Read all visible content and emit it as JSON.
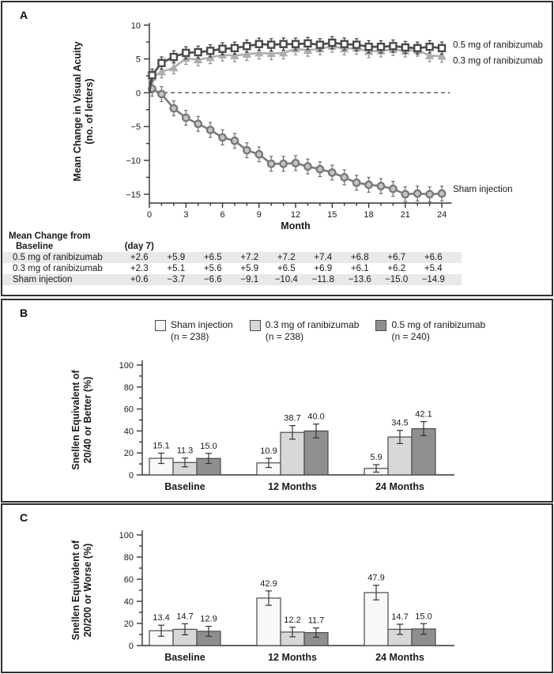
{
  "panel_a": {
    "letter": "A",
    "table": {
      "row_header_line1": "Mean Change from",
      "row_header_line2": "Baseline",
      "first_col_header": "(day 7)",
      "rows": [
        {
          "label": "0.5 mg of ranibizumab",
          "values": [
            "+2.6",
            "+5.9",
            "+6.5",
            "+7.2",
            "+7.2",
            "+7.4",
            "+6.8",
            "+6.7",
            "+6.6"
          ]
        },
        {
          "label": "0.3 mg of ranibizumab",
          "values": [
            "+2.3",
            "+5.1",
            "+5.6",
            "+5.9",
            "+6.5",
            "+6.9",
            "+6.1",
            "+6.2",
            "+5.4"
          ]
        },
        {
          "label": "Sham injection",
          "values": [
            "+0.6",
            "−3.7",
            "−6.6",
            "−9.1",
            "−10.4",
            "−11.8",
            "−13.6",
            "−15.0",
            "−14.9"
          ]
        }
      ]
    }
  },
  "panel_b": {
    "letter": "B"
  },
  "panel_c": {
    "letter": "C"
  },
  "colors": {
    "ranibizumab_05": "#4a4a4a",
    "ranibizumab_03": "#aeaeae",
    "sham_line": "#7a7a7a",
    "sham_bar": "#f8f8f8",
    "bar_03": "#d8d8d8",
    "bar_05": "#8f8f8f",
    "axis": "#333333"
  },
  "chart_data": [
    {
      "panel": "A",
      "type": "line",
      "title": "",
      "xlabel": "Month",
      "ylabel_lines": [
        "Mean Change in Visual Acuity",
        "(no. of letters)"
      ],
      "xlim": [
        0,
        24.8
      ],
      "ylim": [
        -16.5,
        10
      ],
      "yticks": [
        10,
        5,
        0,
        -5,
        -10,
        -15
      ],
      "yminor": [
        7.5,
        2.5,
        -2.5,
        -7.5,
        -12.5
      ],
      "xticks": [
        0,
        3,
        6,
        9,
        12,
        15,
        18,
        21,
        24
      ],
      "xminor_months": [
        1,
        2,
        4,
        5,
        7,
        8,
        10,
        11,
        13,
        14,
        16,
        17,
        19,
        20,
        22,
        23
      ],
      "zero_line_dashed": true,
      "x_note": "x=0.23 is the day-7 assessment; baseline point (0,0) has no marker",
      "x": [
        0,
        0.23,
        1,
        2,
        3,
        4,
        5,
        6,
        7,
        8,
        9,
        10,
        11,
        12,
        13,
        14,
        15,
        16,
        17,
        18,
        19,
        20,
        21,
        22,
        23,
        24
      ],
      "series": [
        {
          "name": "Sham injection",
          "marker": "circle",
          "color": "#7a7a7a",
          "marker_fill": "#c4c4c4",
          "err_color": "#6f6f6f",
          "error": 1.1,
          "label_y": -14.2,
          "values": [
            0,
            0.6,
            -0.2,
            -2.3,
            -3.7,
            -4.6,
            -5.5,
            -6.6,
            -7.1,
            -8.5,
            -9.1,
            -10.5,
            -10.5,
            -10.4,
            -10.9,
            -11.3,
            -11.8,
            -12.5,
            -13.3,
            -13.6,
            -13.8,
            -14.2,
            -15.0,
            -14.9,
            -15.0,
            -14.9
          ]
        },
        {
          "name": "0.3 mg of ranibizumab",
          "marker": "triangle",
          "color": "#aeaeae",
          "marker_fill": "#aeaeae",
          "err_color": "#8f8f8f",
          "error": 0.9,
          "label_y": 4.8,
          "values": [
            0,
            2.3,
            3.1,
            3.7,
            5.1,
            4.9,
            5.2,
            5.6,
            5.5,
            5.7,
            5.9,
            5.8,
            5.9,
            6.5,
            6.3,
            6.5,
            6.9,
            6.5,
            6.6,
            6.1,
            6.2,
            6.4,
            6.2,
            6.3,
            5.5,
            5.4
          ]
        },
        {
          "name": "0.5 mg of ranibizumab",
          "marker": "square",
          "color": "#4a4a4a",
          "marker_fill": "#ffffff",
          "err_color": "#3d3d3d",
          "error": 0.9,
          "label_y": 7.1,
          "values": [
            0,
            2.6,
            4.4,
            5.3,
            5.9,
            6.0,
            6.2,
            6.5,
            6.6,
            6.9,
            7.2,
            7.1,
            7.2,
            7.2,
            7.3,
            7.1,
            7.4,
            7.2,
            7.1,
            6.8,
            6.8,
            6.9,
            6.7,
            6.6,
            6.8,
            6.6
          ]
        }
      ]
    },
    {
      "panel": "B",
      "type": "bar",
      "title": "",
      "ylabel_lines": [
        "Snellen Equivalent of",
        "20/40 or Better (%)"
      ],
      "ylim": [
        0,
        100
      ],
      "yticks": [
        0,
        20,
        40,
        60,
        80,
        100
      ],
      "yminor": [
        10,
        30,
        50,
        70,
        90
      ],
      "categories": [
        "Baseline",
        "12 Months",
        "24 Months"
      ],
      "legend_position": "top",
      "legend": [
        {
          "name": "Sham injection",
          "n_label": "(n = 238)"
        },
        {
          "name": "0.3 mg of ranibizumab",
          "n_label": "(n = 238)"
        },
        {
          "name": "0.5 mg of ranibizumab",
          "n_label": "(n = 240)"
        }
      ],
      "series": [
        {
          "name": "Sham injection",
          "color": "#f8f8f8",
          "values": [
            15.1,
            10.9,
            5.9
          ],
          "errors": [
            4.7,
            4.2,
            3.4
          ]
        },
        {
          "name": "0.3 mg of ranibizumab",
          "color": "#d8d8d8",
          "values": [
            11.3,
            38.7,
            34.5
          ],
          "errors": [
            4.0,
            6.2,
            6.0
          ]
        },
        {
          "name": "0.5 mg of ranibizumab",
          "color": "#8f8f8f",
          "values": [
            15.0,
            40.0,
            42.1
          ],
          "errors": [
            4.6,
            6.3,
            6.4
          ]
        }
      ]
    },
    {
      "panel": "C",
      "type": "bar",
      "title": "",
      "ylabel_lines": [
        "Snellen Equivalent of",
        "20/200 or Worse (%)"
      ],
      "ylim": [
        0,
        100
      ],
      "yticks": [
        0,
        20,
        40,
        60,
        80,
        100
      ],
      "yminor": [
        10,
        30,
        50,
        70,
        90
      ],
      "categories": [
        "Baseline",
        "12 Months",
        "24 Months"
      ],
      "series": [
        {
          "name": "Sham injection",
          "color": "#f8f8f8",
          "values": [
            13.4,
            42.9,
            47.9
          ],
          "errors": [
            5.0,
            6.5,
            6.6
          ]
        },
        {
          "name": "0.3 mg of ranibizumab",
          "color": "#d8d8d8",
          "values": [
            14.7,
            12.2,
            14.7
          ],
          "errors": [
            5.0,
            4.3,
            4.6
          ]
        },
        {
          "name": "0.5 mg of ranibizumab",
          "color": "#8f8f8f",
          "values": [
            12.9,
            11.7,
            15.0
          ],
          "errors": [
            4.5,
            4.2,
            4.8
          ]
        }
      ]
    }
  ]
}
